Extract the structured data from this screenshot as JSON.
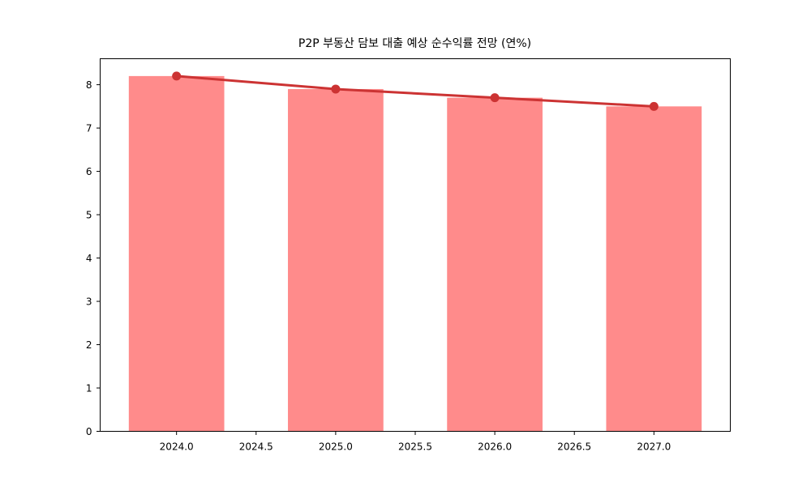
{
  "figure": {
    "background": "#ffffff"
  },
  "chart_data": {
    "type": "bar",
    "title": "P2P 부동산 담보 대출 예상 순수익률 전망 (연%)",
    "x": [
      2024,
      2025,
      2026,
      2027
    ],
    "series": [
      {
        "name": "expected-net-yield-bars",
        "type": "bar",
        "values": [
          8.2,
          7.9,
          7.7,
          7.5
        ],
        "color": "#ff8b8b",
        "bar_width_years": 0.6
      },
      {
        "name": "expected-net-yield-line",
        "type": "line",
        "values": [
          8.2,
          7.9,
          7.7,
          7.5
        ],
        "color": "#cc3333",
        "line_width": 3,
        "marker": "circle",
        "marker_radius": 5.5
      }
    ],
    "xlabel": "",
    "ylabel": "",
    "xlim": [
      2023.52,
      2027.48
    ],
    "ylim": [
      0,
      8.6
    ],
    "x_ticks": [
      2024.0,
      2024.5,
      2025.0,
      2025.5,
      2026.0,
      2026.5,
      2027.0
    ],
    "x_tick_labels": [
      "2024.0",
      "2024.5",
      "2025.0",
      "2025.5",
      "2026.0",
      "2026.5",
      "2027.0"
    ],
    "y_ticks": [
      0,
      1,
      2,
      3,
      4,
      5,
      6,
      7,
      8
    ],
    "y_tick_labels": [
      "0",
      "1",
      "2",
      "3",
      "4",
      "5",
      "6",
      "7",
      "8"
    ],
    "grid": false,
    "legend": null,
    "axes_color": "#000000",
    "tick_color": "#000000"
  }
}
